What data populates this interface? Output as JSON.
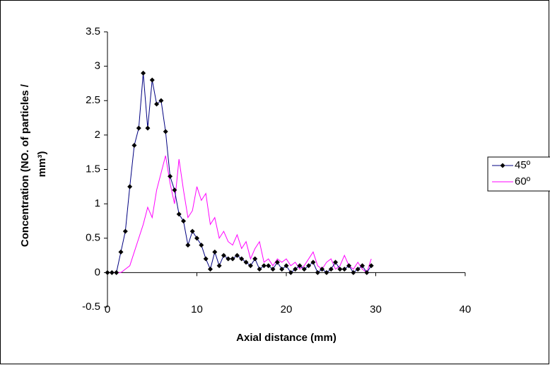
{
  "chart_data": {
    "type": "line",
    "y_label": [
      "Concentration (NO. of particles /",
      "mm³)"
    ],
    "x_label": "Axial distance (mm)",
    "xlim": [
      0,
      40
    ],
    "xticks": [
      0,
      10,
      20,
      30,
      40
    ],
    "ylim": [
      -0.5,
      3.5
    ],
    "yticks": [
      -0.5,
      0,
      0.5,
      1,
      1.5,
      2,
      2.5,
      3,
      3.5
    ],
    "grid": false,
    "legend": "right",
    "x": [
      0,
      0.5,
      1,
      1.5,
      2,
      2.5,
      3,
      3.5,
      4,
      4.5,
      5,
      5.5,
      6,
      6.5,
      7,
      7.5,
      8,
      8.5,
      9,
      9.5,
      10,
      10.5,
      11,
      11.5,
      12,
      12.5,
      13,
      13.5,
      14,
      14.5,
      15,
      15.5,
      16,
      16.5,
      17,
      17.5,
      18,
      18.5,
      19,
      19.5,
      20,
      20.5,
      21,
      21.5,
      22,
      22.5,
      23,
      23.5,
      24,
      24.5,
      25,
      25.5,
      26,
      26.5,
      27,
      27.5,
      28,
      28.5,
      29,
      29.5
    ],
    "series": [
      {
        "name": "45º",
        "color": "#000080",
        "marker": "diamond",
        "values": [
          0,
          0,
          0,
          0.3,
          0.6,
          1.25,
          1.85,
          2.1,
          2.9,
          2.1,
          2.8,
          2.45,
          2.5,
          2.05,
          1.4,
          1.2,
          0.85,
          0.75,
          0.4,
          0.6,
          0.5,
          0.4,
          0.2,
          0.05,
          0.3,
          0.1,
          0.25,
          0.2,
          0.2,
          0.25,
          0.2,
          0.15,
          0.1,
          0.2,
          0.05,
          0.1,
          0.1,
          0.05,
          0.15,
          0.05,
          0.1,
          0,
          0.05,
          0.1,
          0.05,
          0.1,
          0.15,
          0,
          0.05,
          0,
          0.05,
          0.15,
          0.05,
          0.05,
          0.1,
          0,
          0.05,
          0.1,
          0,
          0.1
        ]
      },
      {
        "name": "60º",
        "color": "#ff00ff",
        "marker": "none",
        "values": [
          0,
          0,
          0,
          0,
          0.05,
          0.1,
          0.3,
          0.5,
          0.7,
          0.95,
          0.8,
          1.2,
          1.45,
          1.7,
          1.3,
          1,
          1.65,
          1.2,
          0.8,
          0.9,
          1.25,
          1.05,
          1.15,
          0.7,
          0.8,
          0.5,
          0.6,
          0.45,
          0.4,
          0.55,
          0.35,
          0.45,
          0.2,
          0.35,
          0.45,
          0.15,
          0.2,
          0.1,
          0.2,
          0.15,
          0.2,
          0.1,
          0.15,
          0.05,
          0.1,
          0.2,
          0.3,
          0.1,
          0.05,
          0.15,
          0.2,
          0.05,
          0.1,
          0.25,
          0.1,
          0.05,
          0.15,
          0.05,
          0,
          0.2
        ]
      }
    ]
  }
}
